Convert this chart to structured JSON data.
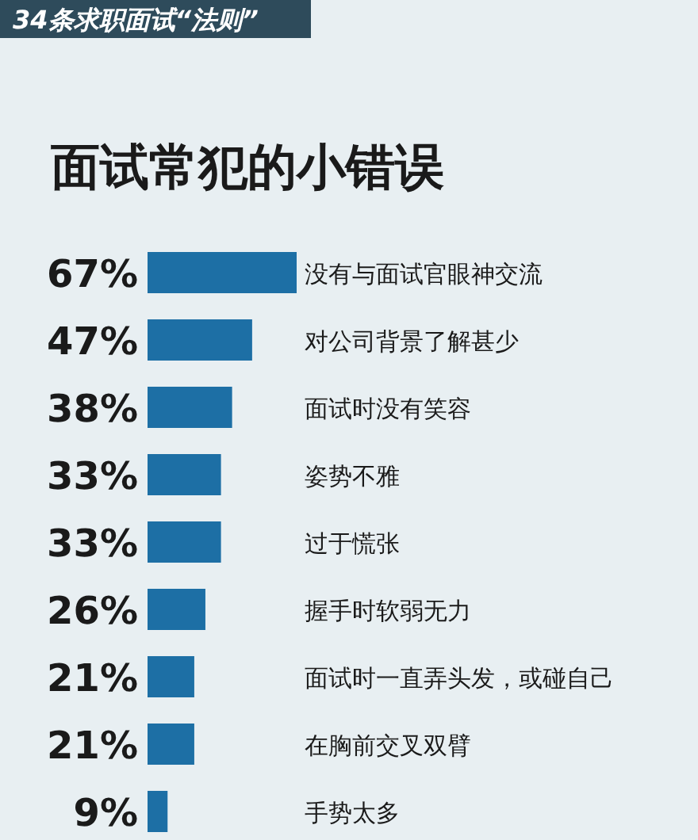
{
  "chart_data": {
    "type": "bar",
    "orientation": "horizontal",
    "subtitle": "34条求职面试“法则”",
    "title": "面试常犯的小错误",
    "categories": [
      "没有与面试官眼神交流",
      "对公司背景了解甚少",
      "面试时没有笑容",
      "姿势不雅",
      "过于慌张",
      "握手时软弱无力",
      "面试时一直弄头发，或碰自己",
      "在胸前交叉双臂",
      "手势太多"
    ],
    "values": [
      67,
      47,
      38,
      33,
      33,
      26,
      21,
      21,
      9
    ],
    "value_labels": [
      "67%",
      "47%",
      "38%",
      "33%",
      "33%",
      "26%",
      "21%",
      "21%",
      "9%"
    ],
    "color": "#1d6fa5"
  }
}
